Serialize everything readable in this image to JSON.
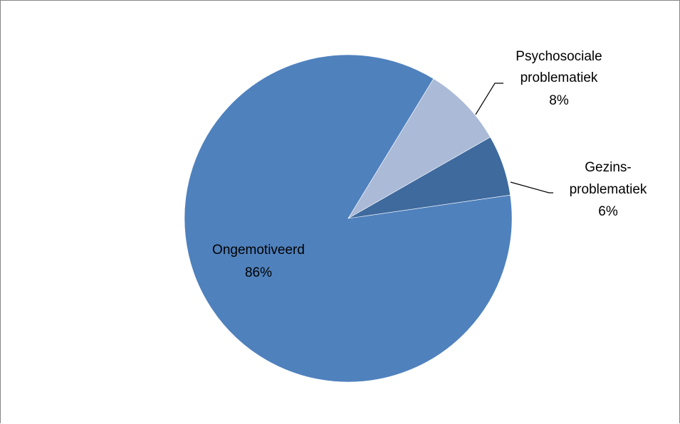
{
  "chart_data": {
    "type": "pie",
    "title": "",
    "slices": [
      {
        "label": "Ongemotiveerd",
        "value": 86,
        "display": "86%",
        "color": "#4F81BD"
      },
      {
        "label": "Psychosociale problematiek",
        "label_lines": [
          "Psychosociale",
          "problematiek"
        ],
        "value": 8,
        "display": "8%",
        "color": "#AABAD7"
      },
      {
        "label": "Gezins-problematiek",
        "label_lines": [
          "Gezins-",
          "problematiek"
        ],
        "value": 6,
        "display": "6%",
        "color": "#3F6A9E"
      }
    ],
    "legend": "none",
    "data_labels": "category-and-percent"
  }
}
